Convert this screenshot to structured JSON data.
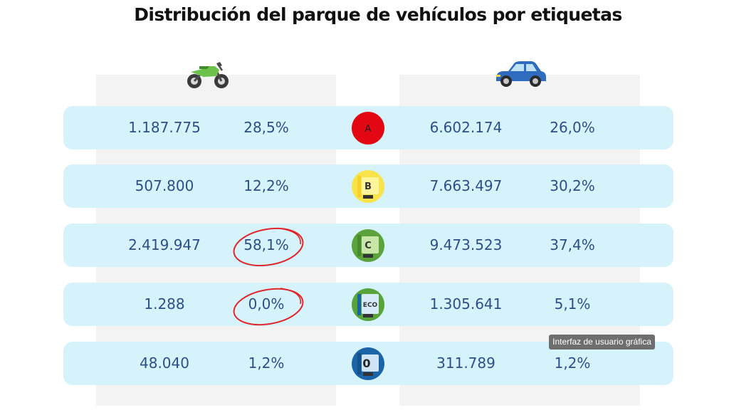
{
  "title": "Distribución del parque de vehículos por etiquetas",
  "icons": {
    "left": "motorcycle-icon",
    "right": "car-icon"
  },
  "colors": {
    "row_bg": "#d6f3fb",
    "panel_bg": "#f3f3f3",
    "number_text": "#2c4f87",
    "highlight_circle": "#e0252b",
    "label_A": "#e30613",
    "label_B": "#f9e34a",
    "label_C": "#5ca33c",
    "label_ECO": "#58a33a",
    "label_0": "#1b64a8"
  },
  "rows": [
    {
      "label": "A",
      "moto_count": "1.187.775",
      "moto_pct": "28,5%",
      "car_count": "6.602.174",
      "car_pct": "26,0%"
    },
    {
      "label": "B",
      "moto_count": "507.800",
      "moto_pct": "12,2%",
      "car_count": "7.663.497",
      "car_pct": "30,2%"
    },
    {
      "label": "C",
      "moto_count": "2.419.947",
      "moto_pct": "58,1%",
      "car_count": "9.473.523",
      "car_pct": "37,4%"
    },
    {
      "label": "ECO",
      "moto_count": "1.288",
      "moto_pct": "0,0%",
      "car_count": "1.305.641",
      "car_pct": "5,1%"
    },
    {
      "label": "0",
      "moto_count": "48.040",
      "moto_pct": "1,2%",
      "car_count": "311.789",
      "car_pct": "1,2%"
    }
  ],
  "highlighted": [
    "58,1%",
    "0,0%"
  ],
  "tooltip": "Interfaz de usuario gráfica",
  "chart_data": {
    "type": "table",
    "title": "Distribución del parque de vehículos por etiquetas",
    "categories": [
      "A",
      "B",
      "C",
      "ECO",
      "0"
    ],
    "series": [
      {
        "values": [
          1187775,
          507800,
          2419947,
          1288,
          48040
        ]
      },
      {
        "values": [
          28.5,
          12.2,
          58.1,
          0.0,
          1.2
        ]
      },
      {
        "values": [
          6602174,
          7663497,
          9473523,
          1305641,
          311789
        ]
      },
      {
        "values": [
          26.0,
          30.2,
          37.4,
          5.1,
          1.2
        ]
      }
    ]
  }
}
